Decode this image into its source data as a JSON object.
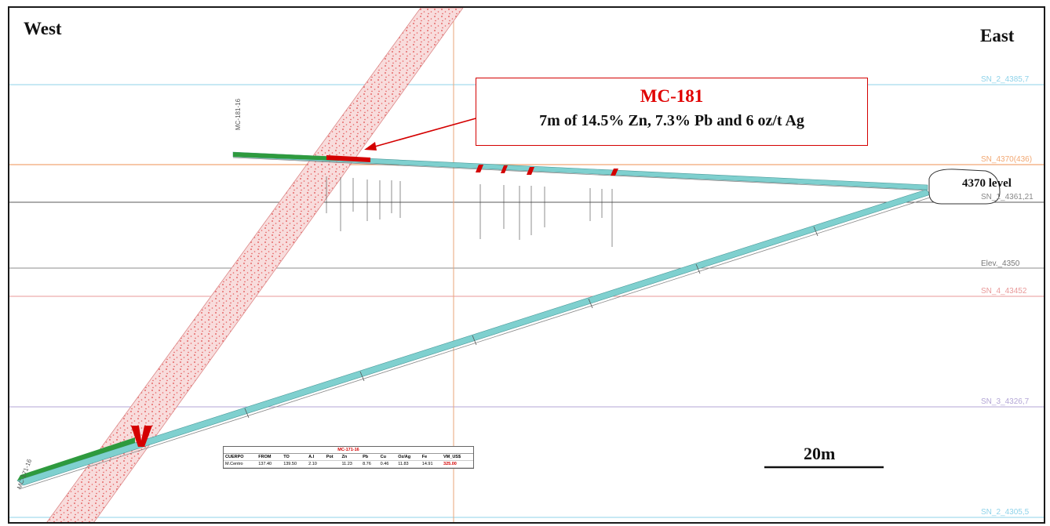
{
  "directions": {
    "west": "West",
    "east": "East"
  },
  "callout": {
    "title": "MC-181",
    "text": "7m of 14.5% Zn, 7.3% Pb and 6 oz/t Ag"
  },
  "level_label": "4370 level",
  "section_lines": [
    {
      "label": "SN_2_4385,7",
      "color": "#8fd3ea"
    },
    {
      "label": "SN_4370(436)",
      "color": "#f2a873"
    },
    {
      "label": "SN_1_4361,21",
      "color": "#222222"
    },
    {
      "label": "Elev._4350",
      "color": "#555555"
    },
    {
      "label": "SN_4_43452",
      "color": "#e99a9a"
    },
    {
      "label": "SN_3_4326,7",
      "color": "#b3a6d6"
    },
    {
      "label": "SN_2_4305,5",
      "color": "#8fd3ea"
    }
  ],
  "drillholes": {
    "upper_label": "MC-181-16",
    "lower_label": "MC-171-16"
  },
  "assay_table": {
    "title": "MC-171-16",
    "headers": [
      "CUERPO",
      "FROM",
      "TO",
      "A.I",
      "Pot",
      "Zn",
      "Pb",
      "Cu",
      "Oz/Ag",
      "Fe",
      "VM_US$"
    ],
    "row": [
      "M.Centro",
      "137.40",
      "139.50",
      "2.10",
      "",
      "11.23",
      "8.76",
      "0.46",
      "11.83",
      "14.91",
      "325.00"
    ]
  },
  "scale_bar": {
    "label": "20m"
  },
  "colors": {
    "frame": "#1a1a1a",
    "ore": "#d40000",
    "drill_hole_cyan": "#7fd0cf",
    "drill_hole_green": "#2e9a3e",
    "fault_zone_fill": "#f6d3d3",
    "fault_zone_dots": "#e04848",
    "vertical_line": "#e9a57a"
  }
}
